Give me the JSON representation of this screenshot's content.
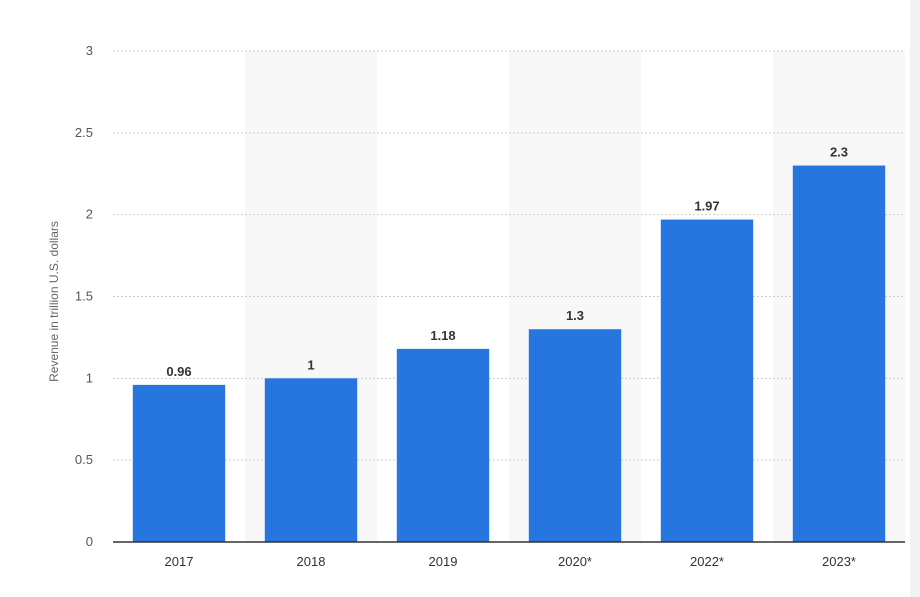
{
  "chart_data": {
    "type": "bar",
    "categories": [
      "2017",
      "2018",
      "2019",
      "2020*",
      "2022*",
      "2023*"
    ],
    "values": [
      0.96,
      1,
      1.18,
      1.3,
      1.97,
      2.3
    ],
    "data_labels": [
      "0.96",
      "1",
      "1.18",
      "1.3",
      "1.97",
      "2.3"
    ],
    "ylabel": "Revenue in trillion U.S. dollars",
    "ylim": [
      0,
      3
    ],
    "yticks": [
      0,
      0.5,
      1,
      1.5,
      2,
      2.5,
      3
    ],
    "ytick_labels": [
      "0",
      "0.5",
      "1",
      "1.5",
      "2",
      "2.5",
      "3"
    ],
    "grid": true,
    "bar_color": "#2775de",
    "band_color": "#f7f7f7",
    "grid_color": "#cccccc"
  }
}
